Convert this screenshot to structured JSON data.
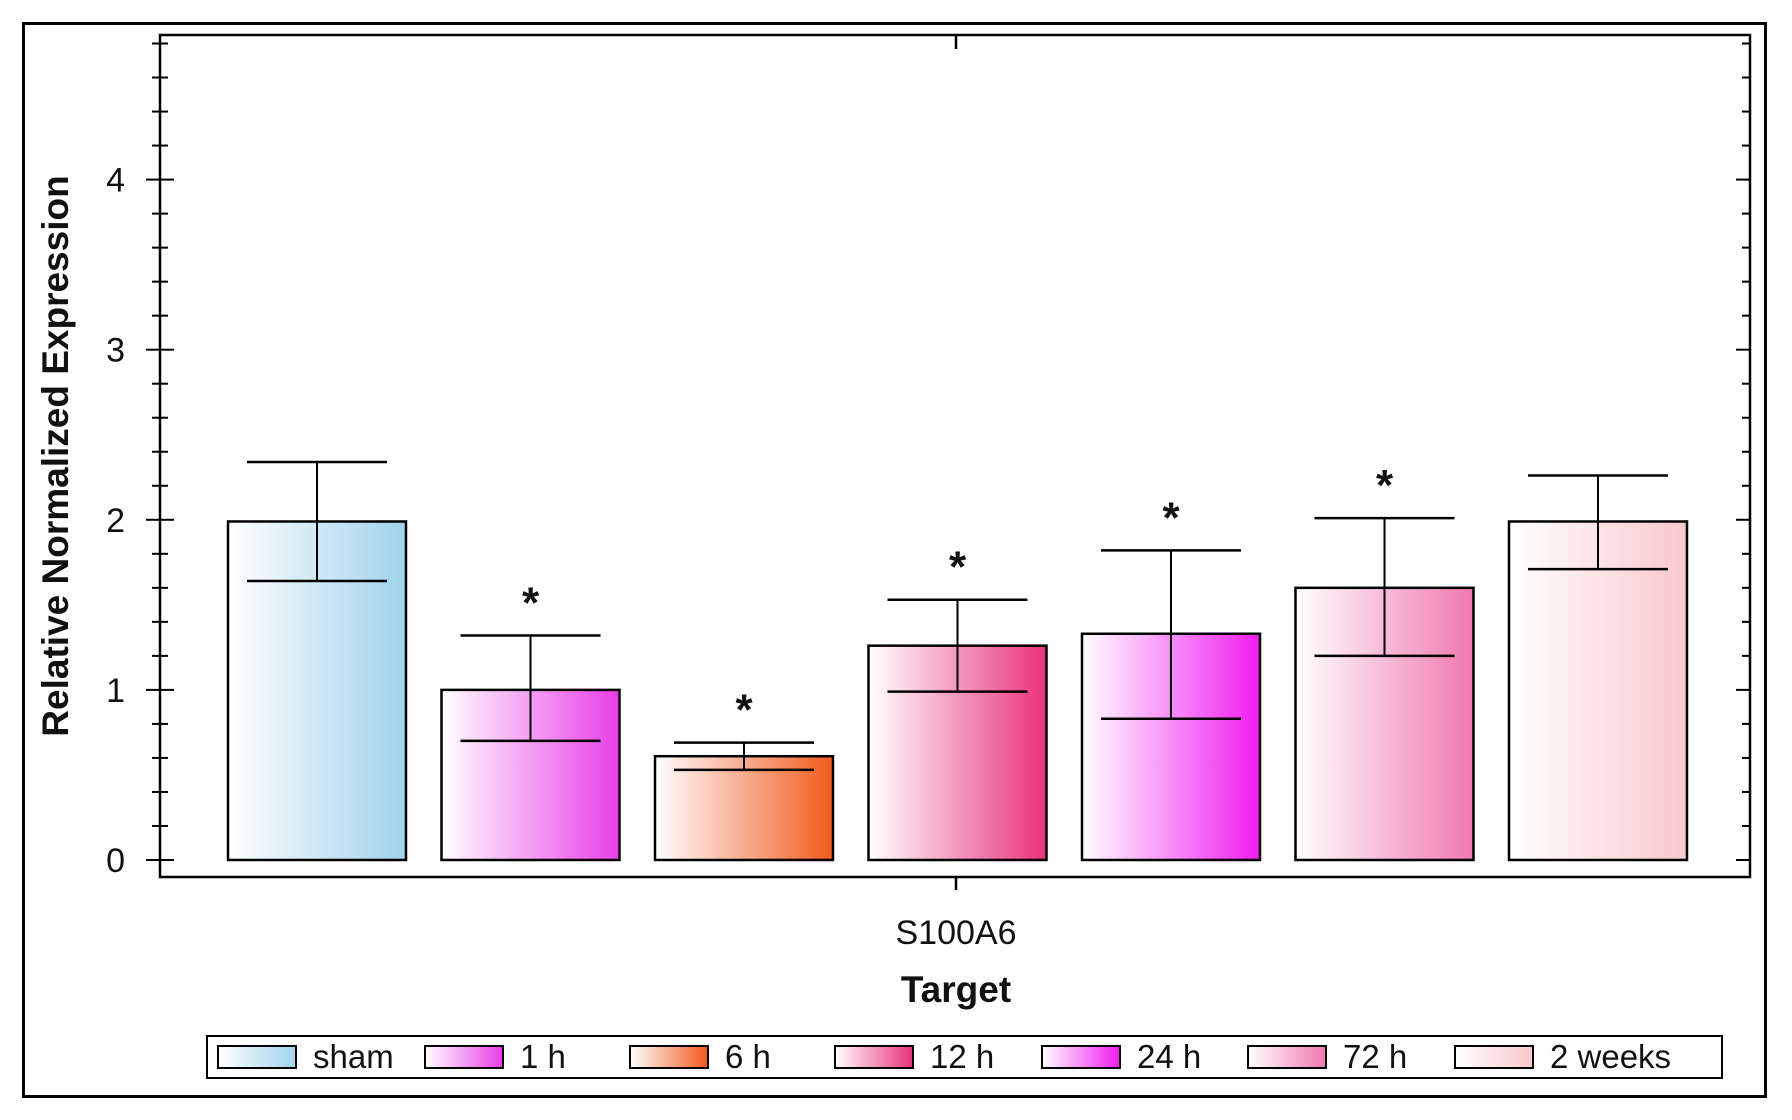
{
  "chart_data": {
    "type": "bar",
    "title": "",
    "xlabel": "Target",
    "ylabel": "Relative Normalized Expression",
    "category": "S100A6",
    "ylim": [
      -0.1,
      4.85
    ],
    "yticks": [
      "0",
      "1",
      "2",
      "3",
      "4"
    ],
    "grid": false,
    "legend_position": "bottom",
    "significance_marker": "*",
    "series": [
      {
        "name": "sham",
        "value": 1.99,
        "err_low": 1.64,
        "err_high": 2.34,
        "significant": false,
        "color": "#9fd3ec"
      },
      {
        "name": "1 h",
        "value": 1.0,
        "err_low": 0.7,
        "err_high": 1.32,
        "significant": true,
        "color": "#e83ee8"
      },
      {
        "name": "6 h",
        "value": 0.61,
        "err_low": 0.53,
        "err_high": 0.69,
        "significant": true,
        "color": "#f25a1c"
      },
      {
        "name": "12 h",
        "value": 1.26,
        "err_low": 0.99,
        "err_high": 1.53,
        "significant": true,
        "color": "#e8327a"
      },
      {
        "name": "24 h",
        "value": 1.33,
        "err_low": 0.83,
        "err_high": 1.82,
        "significant": true,
        "color": "#f01cf0"
      },
      {
        "name": "72 h",
        "value": 1.6,
        "err_low": 1.2,
        "err_high": 2.01,
        "significant": true,
        "color": "#f078b0"
      },
      {
        "name": "2 weeks",
        "value": 1.99,
        "err_low": 1.71,
        "err_high": 2.26,
        "significant": false,
        "color": "#f8c8cc"
      }
    ]
  }
}
